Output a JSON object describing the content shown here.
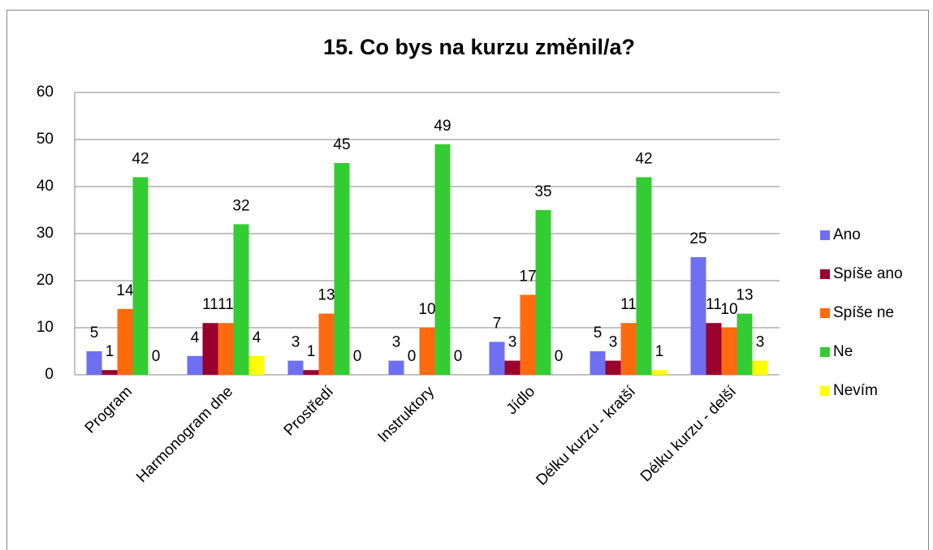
{
  "chart_data": {
    "type": "bar",
    "title": "15. Co bys na kurzu změnil/a?",
    "categories": [
      "Program",
      "Harmonogram dne",
      "Prostředí",
      "Instruktory",
      "Jídlo",
      "Délku kurzu - kratší",
      "Délku kurzu - delší"
    ],
    "series": [
      {
        "name": "Ano",
        "color": "#6f6ff2",
        "values": [
          5,
          4,
          3,
          3,
          7,
          5,
          25
        ]
      },
      {
        "name": "Spíše ano",
        "color": "#99002e",
        "values": [
          1,
          11,
          1,
          0,
          3,
          3,
          11
        ]
      },
      {
        "name": "Spíše ne",
        "color": "#ff6a0f",
        "values": [
          14,
          11,
          13,
          10,
          17,
          11,
          10
        ]
      },
      {
        "name": "Ne",
        "color": "#33cc33",
        "values": [
          42,
          32,
          45,
          49,
          35,
          42,
          13
        ]
      },
      {
        "name": "Nevím",
        "color": "#ffff00",
        "values": [
          0,
          4,
          0,
          0,
          0,
          1,
          3
        ]
      }
    ],
    "ylim": [
      0,
      60
    ],
    "yticks": [
      0,
      10,
      20,
      30,
      40,
      50,
      60
    ],
    "grid": true,
    "legend": "right"
  }
}
